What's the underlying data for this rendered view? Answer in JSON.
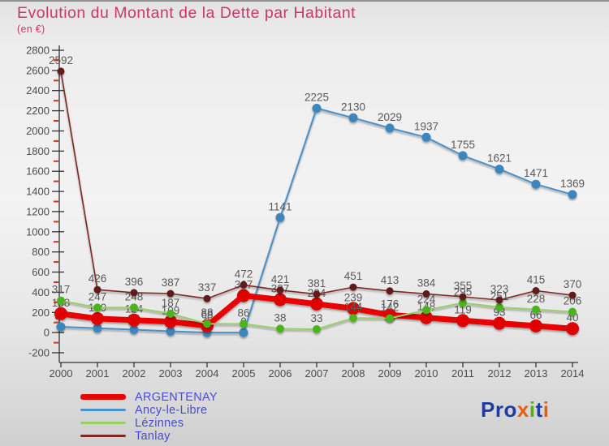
{
  "header": {
    "title": "Evolution du Montant de la Dette par Habitant",
    "subtitle": "(en €)"
  },
  "colors": {
    "title": "#c83a66",
    "legend_text": "#4a4ad0",
    "tick_label": "#4d4d4d",
    "value_label": "#595959",
    "axis": "#333333",
    "minor_tick": "#e03010",
    "top_edge": "#8e8e8e"
  },
  "chart_data": {
    "type": "line",
    "x": [
      "2000",
      "2001",
      "2002",
      "2003",
      "2004",
      "2005",
      "2006",
      "2007",
      "2008",
      "2009",
      "2010",
      "2011",
      "2012",
      "2013",
      "2014"
    ],
    "ylim": [
      -200,
      2800
    ],
    "ytick_step": 200,
    "grid": false,
    "legend_position": "bottom-left",
    "series": [
      {
        "name": "ARGENTENAY",
        "color": "#e80505",
        "marker_color": "#df0000",
        "line_width": 7,
        "marker_radius": 8,
        "values": [
          188,
          139,
          124,
          109,
          68,
          367,
          327,
          284,
          239,
          176,
          148,
          119,
          93,
          66,
          40
        ]
      },
      {
        "name": "Ancy-le-Libre",
        "color": "#4a90c8",
        "marker_color": "#3d85bd",
        "line_width": 2,
        "marker_radius": 5.5,
        "values": [
          57,
          43,
          29,
          13,
          0,
          0,
          1141,
          2225,
          2130,
          2029,
          1937,
          1755,
          1621,
          1471,
          1369
        ]
      },
      {
        "name": "Lézinnes",
        "color": "#97cf68",
        "marker_color": "#4bb31e",
        "line_width": 2,
        "marker_radius": 5,
        "values": [
          317,
          247,
          248,
          187,
          88,
          86,
          38,
          33,
          144,
          142,
          224,
          295,
          251,
          228,
          206
        ]
      },
      {
        "name": "Tanlay",
        "color": "#7a2b26",
        "marker_color": "#611f1a",
        "line_width": 1.6,
        "marker_radius": 4.5,
        "values": [
          2592,
          426,
          396,
          387,
          337,
          472,
          421,
          381,
          451,
          413,
          384,
          355,
          323,
          415,
          370
        ]
      }
    ]
  },
  "logo": {
    "letters": [
      {
        "text": "Pro",
        "color": "#1e3d9e"
      },
      {
        "text": "x",
        "color": "#e85d0a"
      },
      {
        "text": "i",
        "color": "#5aaa1e"
      },
      {
        "text": "t",
        "color": "#1e3d9e"
      },
      {
        "text": "i",
        "color": "#e85d0a"
      }
    ]
  }
}
